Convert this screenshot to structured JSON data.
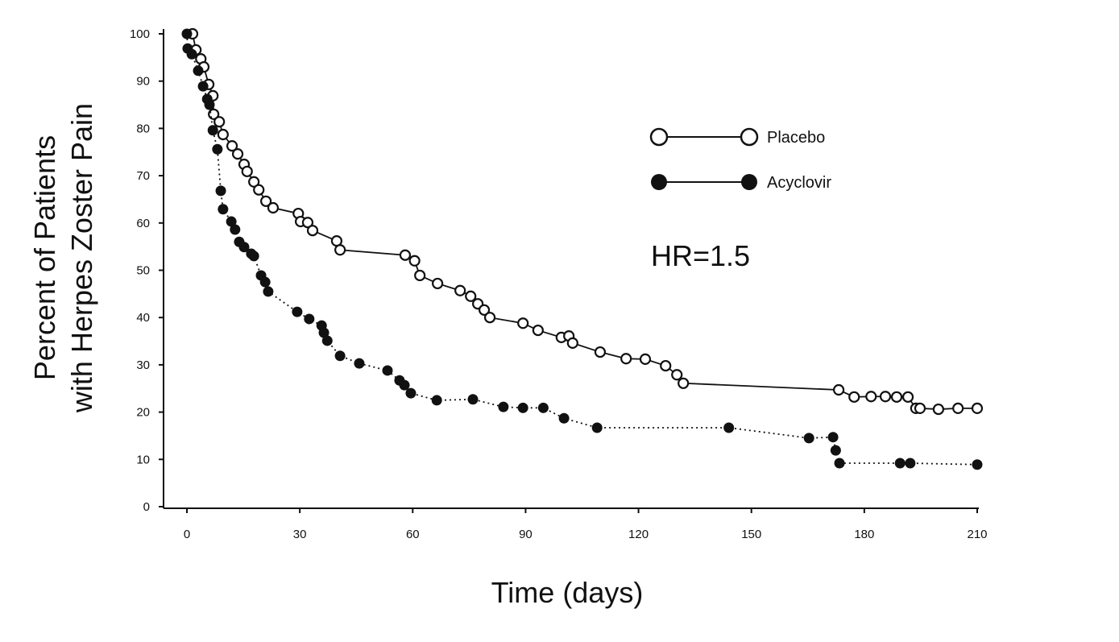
{
  "chart_data": {
    "type": "line",
    "title": "",
    "xlabel": "Time (days)",
    "ylabel_line1": "Percent of Patients",
    "ylabel_line2": "with Herpes Zoster Pain",
    "xlim": [
      0,
      210
    ],
    "ylim": [
      0,
      100
    ],
    "xticks": [
      "0",
      "30",
      "60",
      "90",
      "120",
      "150",
      "180",
      "210"
    ],
    "yticks": [
      "0",
      "10",
      "20",
      "30",
      "40",
      "50",
      "60",
      "70",
      "80",
      "90",
      "100"
    ],
    "grid": false,
    "legend_position": "top-right",
    "annotation": "HR=1.5",
    "series": [
      {
        "name": "Placebo",
        "marker": "open-circle",
        "line": "solid",
        "color": "#111111",
        "x": [
          1.5,
          2.4,
          3.7,
          4.5,
          5.8,
          6.9,
          7.1,
          8.6,
          9.6,
          12,
          13.5,
          15.2,
          16,
          17.8,
          19.1,
          21,
          22.9,
          29.6,
          30.2,
          32.1,
          33.4,
          39.8,
          40.7,
          58,
          60.5,
          61.9,
          66.6,
          72.6,
          75.4,
          77.3,
          79,
          80.5,
          89.3,
          93.3,
          99.5,
          101.5,
          102.5,
          109.8,
          116.7,
          121.8,
          127.2,
          130.2,
          131.9,
          173.2,
          177.3,
          181.8,
          185.6,
          188.6,
          191.6,
          193.7,
          194.8,
          199.7,
          204.9,
          210
        ],
        "y": [
          100,
          96.6,
          94.7,
          93,
          89.3,
          86.9,
          83,
          81.4,
          78.7,
          76.3,
          74.6,
          72.4,
          70.9,
          68.7,
          67,
          64.6,
          63.2,
          62,
          60.3,
          60.1,
          58.4,
          56.2,
          54.3,
          53.2,
          52,
          48.9,
          47.2,
          45.7,
          44.5,
          42.9,
          41.6,
          40,
          38.8,
          37.3,
          35.8,
          36.1,
          34.6,
          32.7,
          31.3,
          31.2,
          29.8,
          27.9,
          26.1,
          24.7,
          23.2,
          23.3,
          23.3,
          23.2,
          23.2,
          20.8,
          20.8,
          20.6,
          20.8,
          20.8
        ]
      },
      {
        "name": "Acyclovir",
        "marker": "filled-circle",
        "line": "dotted",
        "color": "#111111",
        "x": [
          0,
          0.2,
          1.3,
          3,
          4.3,
          5.4,
          6,
          6.9,
          8.1,
          9,
          9.6,
          11.8,
          12.8,
          13.9,
          15.2,
          17.1,
          17.8,
          19.7,
          20.8,
          21.6,
          29.3,
          32.5,
          35.8,
          36.4,
          37.3,
          40.7,
          45.8,
          53.3,
          56.5,
          57.8,
          59.5,
          66.4,
          76,
          84.1,
          89.3,
          94.7,
          100.2,
          109,
          144,
          165.3,
          171.7,
          172.4,
          173.4,
          189.5,
          192.2,
          210
        ],
        "y": [
          100,
          96.9,
          95.7,
          92.2,
          88.9,
          86.2,
          85,
          79.6,
          75.6,
          66.8,
          62.9,
          60.3,
          58.6,
          56,
          54.9,
          53.5,
          53,
          48.9,
          47.5,
          45.5,
          41.2,
          39.7,
          38.3,
          36.8,
          35.1,
          31.9,
          30.3,
          28.8,
          26.7,
          25.7,
          24,
          22.5,
          22.7,
          21.1,
          20.9,
          20.9,
          18.7,
          16.7,
          16.7,
          14.5,
          14.7,
          11.9,
          9.2,
          9.2,
          9.2,
          8.9
        ]
      }
    ]
  }
}
